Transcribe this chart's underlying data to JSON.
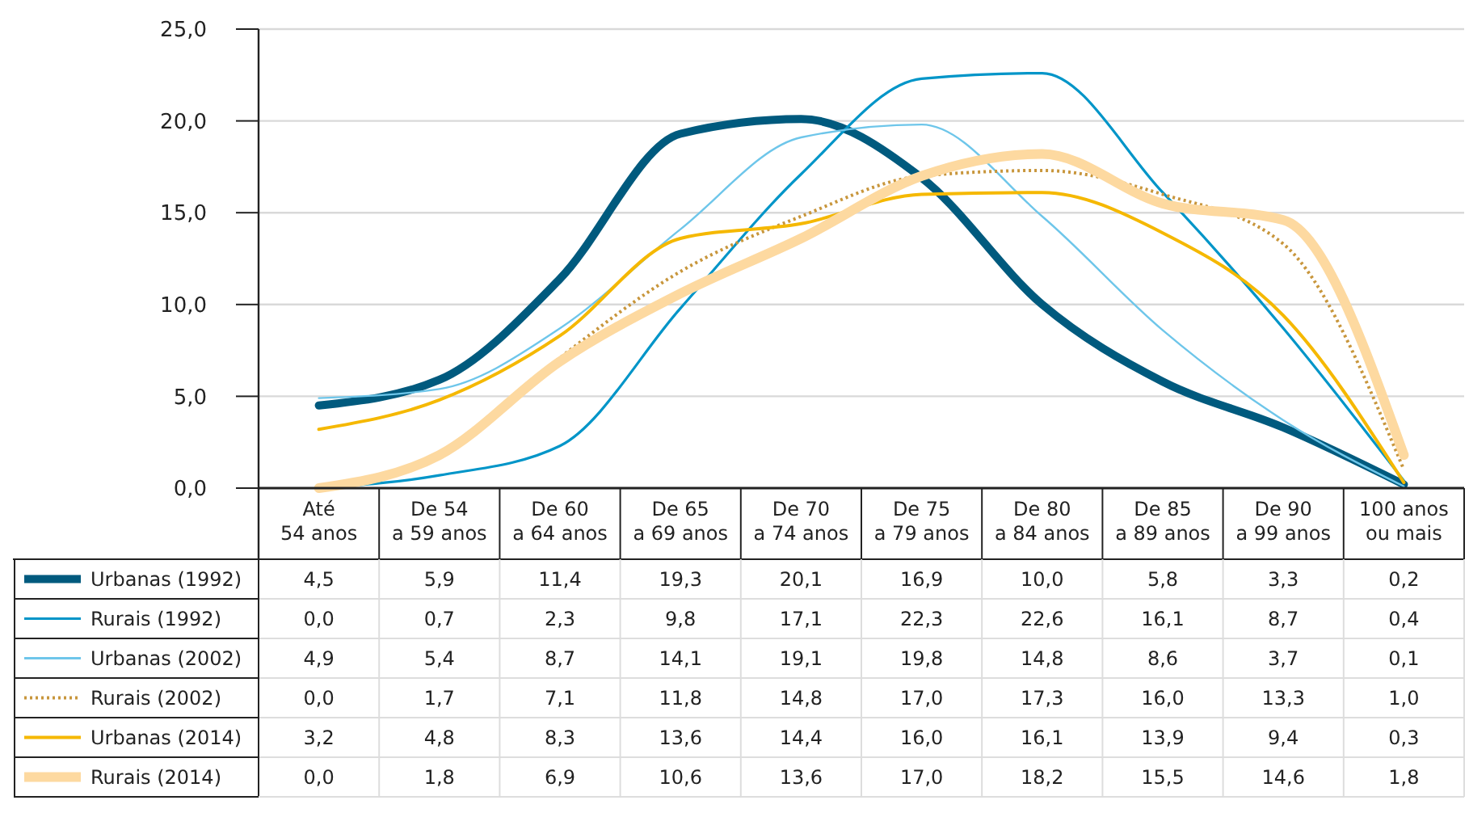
{
  "chart_data": {
    "type": "line",
    "categories": [
      "Até\n54 anos",
      "De 54\na 59 anos",
      "De 60\na 64 anos",
      "De 65\na 69 anos",
      "De 70\na 74 anos",
      "De 75\na 79 anos",
      "De 80\na 84 anos",
      "De 85\na 89 anos",
      "De 90\na 99 anos",
      "100 anos\nou mais"
    ],
    "series": [
      {
        "name": "Urbanas (1992)",
        "color": "#005a7e",
        "values": [
          4.5,
          5.9,
          11.4,
          19.3,
          20.1,
          16.9,
          10.0,
          5.8,
          3.3,
          0.2
        ],
        "value_labels": [
          "4,5",
          "5,9",
          "11,4",
          "19,3",
          "20,1",
          "16,9",
          "10,0",
          "5,8",
          "3,3",
          "0,2"
        ]
      },
      {
        "name": "Rurais (1992)",
        "color": "#0095c8",
        "values": [
          0.0,
          0.7,
          2.3,
          9.8,
          17.1,
          22.3,
          22.6,
          16.1,
          8.7,
          0.4
        ],
        "value_labels": [
          "0,0",
          "0,7",
          "2,3",
          "9,8",
          "17,1",
          "22,3",
          "22,6",
          "16,1",
          "8,7",
          "0,4"
        ]
      },
      {
        "name": "Urbanas (2002)",
        "color": "#6ec6ea",
        "values": [
          4.9,
          5.4,
          8.7,
          14.1,
          19.1,
          19.8,
          14.8,
          8.6,
          3.7,
          0.1
        ],
        "value_labels": [
          "4,9",
          "5,4",
          "8,7",
          "14,1",
          "19,1",
          "19,8",
          "14,8",
          "8,6",
          "3,7",
          "0,1"
        ]
      },
      {
        "name": "Rurais (2002)",
        "color": "#c8963c",
        "line_style": "dotted",
        "values": [
          0.0,
          1.7,
          7.1,
          11.8,
          14.8,
          17.0,
          17.3,
          16.0,
          13.3,
          1.0
        ],
        "value_labels": [
          "0,0",
          "1,7",
          "7,1",
          "11,8",
          "14,8",
          "17,0",
          "17,3",
          "16,0",
          "13,3",
          "1,0"
        ]
      },
      {
        "name": "Urbanas (2014)",
        "color": "#f5b800",
        "values": [
          3.2,
          4.8,
          8.3,
          13.6,
          14.4,
          16.0,
          16.1,
          13.9,
          9.4,
          0.3
        ],
        "value_labels": [
          "3,2",
          "4,8",
          "8,3",
          "13,6",
          "14,4",
          "16,0",
          "16,1",
          "13,9",
          "9,4",
          "0,3"
        ]
      },
      {
        "name": "Rurais (2014)",
        "color": "#fdd9a0",
        "values": [
          0.0,
          1.8,
          6.9,
          10.6,
          13.6,
          17.0,
          18.2,
          15.5,
          14.6,
          1.8
        ],
        "value_labels": [
          "0,0",
          "1,8",
          "6,9",
          "10,6",
          "13,6",
          "17,0",
          "18,2",
          "15,5",
          "14,6",
          "1,8"
        ]
      }
    ],
    "ylim": [
      0,
      25
    ],
    "yticks": [
      {
        "value": 0,
        "label": "0,0"
      },
      {
        "value": 5,
        "label": "5,0"
      },
      {
        "value": 10,
        "label": "10,0"
      },
      {
        "value": 15,
        "label": "15,0"
      },
      {
        "value": 20,
        "label": "20,0"
      },
      {
        "value": 25,
        "label": "25,0"
      }
    ],
    "grid": "y",
    "legend": "bottom",
    "line_style": "solid"
  }
}
